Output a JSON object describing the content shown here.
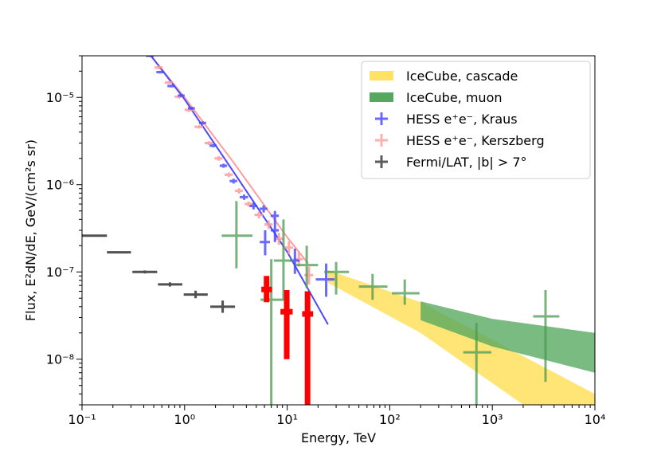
{
  "chart_data": {
    "type": "scatter",
    "title": "",
    "xlabel": "Energy, TeV",
    "ylabel": "Flux, E²dN/dE, GeV/(cm²s sr)",
    "xscale": "log",
    "yscale": "log",
    "xlim": [
      0.1,
      10000
    ],
    "ylim": [
      3e-09,
      3e-05
    ],
    "x_ticks": [
      {
        "value": 0.1,
        "label": "10⁻¹"
      },
      {
        "value": 1,
        "label": "10⁰"
      },
      {
        "value": 10,
        "label": "10¹"
      },
      {
        "value": 100,
        "label": "10²"
      },
      {
        "value": 1000,
        "label": "10³"
      },
      {
        "value": 10000,
        "label": "10⁴"
      }
    ],
    "y_ticks": [
      {
        "value": 1e-08,
        "label": "10⁻⁸"
      },
      {
        "value": 1e-07,
        "label": "10⁻⁷"
      },
      {
        "value": 1e-06,
        "label": "10⁻⁶"
      },
      {
        "value": 1e-05,
        "label": "10⁻⁵"
      }
    ],
    "legend_position": "top-right",
    "legend": [
      {
        "label": "IceCube, cascade",
        "color": "#FFE266",
        "kind": "band"
      },
      {
        "label": "IceCube, muon",
        "color": "#55A85E",
        "kind": "band"
      },
      {
        "label": "HESS e⁺e⁻, Kraus",
        "color": "#4444FF",
        "kind": "errorbar"
      },
      {
        "label": "HESS e⁺e⁻, Kerszberg",
        "color": "#FF9C9C",
        "kind": "errorbar"
      },
      {
        "label": "Fermi/LAT, |b| > 7°",
        "color": "#333333",
        "kind": "errorbar"
      }
    ],
    "bands": [
      {
        "name": "IceCube, cascade",
        "color": "#FFE266",
        "opacity": 0.9,
        "upper": [
          [
            25,
            1.05e-07
          ],
          [
            200,
            4.5e-08
          ],
          [
            10000,
            4e-09
          ]
        ],
        "lower": [
          [
            25,
            7.5e-08
          ],
          [
            200,
            2e-08
          ],
          [
            10000,
            8e-10
          ]
        ]
      },
      {
        "name": "IceCube, muon",
        "color": "#55A85E",
        "opacity": 0.78,
        "upper": [
          [
            200,
            4.6e-08
          ],
          [
            1000,
            2.9e-08
          ],
          [
            10000,
            2e-08
          ]
        ],
        "lower": [
          [
            200,
            2.8e-08
          ],
          [
            1000,
            1.4e-08
          ],
          [
            10000,
            7e-09
          ]
        ]
      }
    ],
    "lines": [
      {
        "name": "Kerszberg fit",
        "color": "#FF9C9C",
        "width": 2,
        "points": [
          [
            0.45,
            3.2e-05
          ],
          [
            1,
            1e-05
          ],
          [
            3,
            1.8e-06
          ],
          [
            10,
            2.5e-07
          ],
          [
            16,
            1.25e-07
          ]
        ]
      },
      {
        "name": "Kraus fit",
        "color": "#4A4AFF",
        "width": 2,
        "points": [
          [
            0.45,
            3.2e-05
          ],
          [
            1,
            9.5e-06
          ],
          [
            3,
            1.4e-06
          ],
          [
            10,
            1.7e-07
          ],
          [
            25,
            2.5e-08
          ]
        ]
      }
    ],
    "series": [
      {
        "name": "Fermi/LAT, |b| > 7°",
        "color": "#333333",
        "opacity": 0.85,
        "width": 3,
        "points": [
          {
            "x": 0.132,
            "y": 2.6e-07,
            "xerr": [
              0.1,
              0.175
            ],
            "yerr": [
              2.55e-07,
              2.65e-07
            ]
          },
          {
            "x": 0.23,
            "y": 1.68e-07,
            "xerr": [
              0.175,
              0.3
            ],
            "yerr": [
              1.64e-07,
              1.72e-07
            ]
          },
          {
            "x": 0.41,
            "y": 1e-07,
            "xerr": [
              0.31,
              0.54
            ],
            "yerr": [
              9.6e-08,
              1.04e-07
            ]
          },
          {
            "x": 0.72,
            "y": 7.2e-08,
            "xerr": [
              0.55,
              0.95
            ],
            "yerr": [
              6.8e-08,
              7.6e-08
            ]
          },
          {
            "x": 1.28,
            "y": 5.5e-08,
            "xerr": [
              0.98,
              1.68
            ],
            "yerr": [
              5e-08,
              6.1e-08
            ]
          },
          {
            "x": 2.35,
            "y": 4e-08,
            "xerr": [
              1.78,
              3.1
            ],
            "yerr": [
              3.4e-08,
              4.7e-08
            ]
          }
        ]
      },
      {
        "name": "HESS e⁺e⁻, Kerszberg",
        "color": "#FF9C9C",
        "opacity": 0.85,
        "width": 3,
        "points": [
          {
            "x": 0.45,
            "y": 3.1e-05,
            "xerr": [
              0.41,
              0.49
            ],
            "yerr": [
              2.95e-05,
              3.25e-05
            ]
          },
          {
            "x": 0.56,
            "y": 2.2e-05,
            "xerr": [
              0.51,
              0.61
            ],
            "yerr": [
              2.1e-05,
              2.3e-05
            ]
          },
          {
            "x": 0.7,
            "y": 1.48e-05,
            "xerr": [
              0.64,
              0.76
            ],
            "yerr": [
              1.42e-05,
              1.54e-05
            ]
          },
          {
            "x": 0.88,
            "y": 1.02e-05,
            "xerr": [
              0.8,
              0.96
            ],
            "yerr": [
              9.7e-06,
              1.07e-05
            ]
          },
          {
            "x": 1.1,
            "y": 7.2e-06,
            "xerr": [
              1.0,
              1.2
            ],
            "yerr": [
              6.8e-06,
              7.6e-06
            ]
          },
          {
            "x": 1.38,
            "y": 4.6e-06,
            "xerr": [
              1.25,
              1.51
            ],
            "yerr": [
              4.4e-06,
              4.8e-06
            ]
          },
          {
            "x": 1.72,
            "y": 3e-06,
            "xerr": [
              1.57,
              1.88
            ],
            "yerr": [
              2.85e-06,
              3.15e-06
            ]
          },
          {
            "x": 2.15,
            "y": 2e-06,
            "xerr": [
              1.96,
              2.35
            ],
            "yerr": [
              1.88e-06,
              2.12e-06
            ]
          },
          {
            "x": 2.7,
            "y": 1.3e-06,
            "xerr": [
              2.45,
              2.95
            ],
            "yerr": [
              1.22e-06,
              1.38e-06
            ]
          },
          {
            "x": 3.4,
            "y": 8.5e-07,
            "xerr": [
              3.1,
              3.7
            ],
            "yerr": [
              7.9e-07,
              9.1e-07
            ]
          },
          {
            "x": 4.2,
            "y": 6e-07,
            "xerr": [
              3.85,
              4.6
            ],
            "yerr": [
              5.6e-07,
              6.4e-07
            ]
          },
          {
            "x": 5.3,
            "y": 4.5e-07,
            "xerr": [
              4.8,
              5.8
            ],
            "yerr": [
              4.1e-07,
              4.9e-07
            ]
          },
          {
            "x": 6.6,
            "y": 3.5e-07,
            "xerr": [
              6.0,
              7.2
            ],
            "yerr": [
              3.1e-07,
              3.9e-07
            ]
          },
          {
            "x": 8.3,
            "y": 2.4e-07,
            "xerr": [
              7.5,
              9.1
            ],
            "yerr": [
              2.05e-07,
              2.8e-07
            ]
          },
          {
            "x": 10.4,
            "y": 1.9e-07,
            "xerr": [
              9.4,
              11.4
            ],
            "yerr": [
              1.6e-07,
              2.25e-07
            ]
          },
          {
            "x": 13.0,
            "y": 1.4e-07,
            "xerr": [
              11.7,
              14.3
            ],
            "yerr": [
              1.15e-07,
              1.7e-07
            ]
          },
          {
            "x": 16.3,
            "y": 9.2e-08,
            "xerr": [
              14.7,
              17.9
            ],
            "yerr": [
              7.2e-08,
              1.15e-07
            ]
          }
        ]
      },
      {
        "name": "HESS e⁺e⁻, Kraus",
        "color": "#4444FF",
        "opacity": 0.8,
        "width": 3,
        "points": [
          {
            "x": 0.46,
            "y": 3e-05,
            "xerr": [
              0.42,
              0.5
            ],
            "yerr": [
              2.9e-05,
              3.1e-05
            ]
          },
          {
            "x": 0.58,
            "y": 1.95e-05,
            "xerr": [
              0.53,
              0.63
            ],
            "yerr": [
              1.88e-05,
              2.02e-05
            ]
          },
          {
            "x": 0.74,
            "y": 1.35e-05,
            "xerr": [
              0.68,
              0.8
            ],
            "yerr": [
              1.3e-05,
              1.4e-05
            ]
          },
          {
            "x": 0.93,
            "y": 1.05e-05,
            "xerr": [
              0.86,
              1.0
            ],
            "yerr": [
              1.01e-05,
              1.09e-05
            ]
          },
          {
            "x": 1.17,
            "y": 7.5e-06,
            "xerr": [
              1.08,
              1.26
            ],
            "yerr": [
              7.2e-06,
              7.8e-06
            ]
          },
          {
            "x": 1.5,
            "y": 5.1e-06,
            "xerr": [
              1.38,
              1.62
            ],
            "yerr": [
              4.9e-06,
              5.3e-06
            ]
          },
          {
            "x": 1.9,
            "y": 2.8e-06,
            "xerr": [
              1.75,
              2.05
            ],
            "yerr": [
              2.68e-06,
              2.92e-06
            ]
          },
          {
            "x": 2.4,
            "y": 1.65e-06,
            "xerr": [
              2.2,
              2.6
            ],
            "yerr": [
              1.56e-06,
              1.74e-06
            ]
          },
          {
            "x": 3.0,
            "y": 1.1e-06,
            "xerr": [
              2.75,
              3.25
            ],
            "yerr": [
              1.03e-06,
              1.17e-06
            ]
          },
          {
            "x": 3.8,
            "y": 7.2e-07,
            "xerr": [
              3.45,
              4.15
            ],
            "yerr": [
              6.7e-07,
              7.7e-07
            ]
          },
          {
            "x": 4.7,
            "y": 5.7e-07,
            "xerr": [
              4.3,
              5.1
            ],
            "yerr": [
              5.2e-07,
              6.2e-07
            ]
          },
          {
            "x": 5.9,
            "y": 5.3e-07,
            "xerr": [
              5.4,
              6.4
            ],
            "yerr": [
              4.8e-07,
              5.8e-07
            ]
          },
          {
            "x": 7.6,
            "y": 4.4e-07,
            "xerr": [
              6.9,
              8.3
            ],
            "yerr": [
              3.9e-07,
              5e-07
            ]
          },
          {
            "x": 7.6,
            "y": 3e-07,
            "xerr": [
              6.9,
              8.3
            ],
            "yerr": [
              2.2e-07,
              3.9e-07
            ]
          },
          {
            "x": 6.1,
            "y": 2.2e-07,
            "xerr": [
              5.4,
              6.8
            ],
            "yerr": [
              1.55e-07,
              3e-07
            ]
          },
          {
            "x": 11.9,
            "y": 1.35e-07,
            "xerr": [
              10.6,
              13.2
            ],
            "yerr": [
              9.5e-08,
              1.85e-07
            ]
          },
          {
            "x": 24,
            "y": 8.2e-08,
            "xerr": [
              19,
              29
            ],
            "yerr": [
              5.2e-08,
              1.25e-07
            ]
          }
        ]
      },
      {
        "name": "IceCube segments (green)",
        "color": "#4C9A52",
        "opacity": 0.75,
        "width": 3,
        "points": [
          {
            "x": 3.2,
            "y": 2.6e-07,
            "xerr": [
              2.3,
              4.6
            ],
            "yerr": [
              1.1e-07,
              6.5e-07
            ]
          },
          {
            "x": 7.0,
            "y": 4.8e-08,
            "xerr": [
              5.5,
              9.3
            ],
            "yerr": [
              3e-09,
              1.4e-07
            ]
          },
          {
            "x": 9.2,
            "y": 1.35e-07,
            "xerr": [
              7.4,
              11.4
            ],
            "yerr": [
              4.8e-08,
              4e-07
            ]
          },
          {
            "x": 15.5,
            "y": 1.2e-07,
            "xerr": [
              12.2,
              20
            ],
            "yerr": [
              6.5e-08,
              2e-07
            ]
          },
          {
            "x": 30,
            "y": 1e-07,
            "xerr": [
              23,
              40
            ],
            "yerr": [
              5.5e-08,
              1.3e-07
            ]
          },
          {
            "x": 68,
            "y": 6.8e-08,
            "xerr": [
              50,
              95
            ],
            "yerr": [
              4.8e-08,
              9.5e-08
            ]
          },
          {
            "x": 140,
            "y": 5.7e-08,
            "xerr": [
              105,
              195
            ],
            "yerr": [
              4.2e-08,
              8.2e-08
            ]
          },
          {
            "x": 700,
            "y": 1.2e-08,
            "xerr": [
              520,
              980
            ],
            "yerr": [
              3e-09,
              2.6e-08
            ]
          },
          {
            "x": 3300,
            "y": 3.1e-08,
            "xerr": [
              2500,
              4500
            ],
            "yerr": [
              5.5e-09,
              6.2e-08
            ]
          }
        ]
      },
      {
        "name": "Red upper limits",
        "color": "#FF0000",
        "opacity": 1.0,
        "width": 7,
        "points": [
          {
            "x": 6.3,
            "y": 6.3e-08,
            "xerr": [
              5.6,
              7.1
            ],
            "yerr": [
              4.5e-08,
              9e-08
            ]
          },
          {
            "x": 9.9,
            "y": 3.5e-08,
            "xerr": [
              8.6,
              11.3
            ],
            "yerr": [
              1e-08,
              6.2e-08
            ]
          },
          {
            "x": 15.8,
            "y": 3.3e-08,
            "xerr": [
              14.0,
              17.9
            ],
            "yerr": [
              3e-09,
              6e-08
            ]
          }
        ]
      }
    ]
  }
}
